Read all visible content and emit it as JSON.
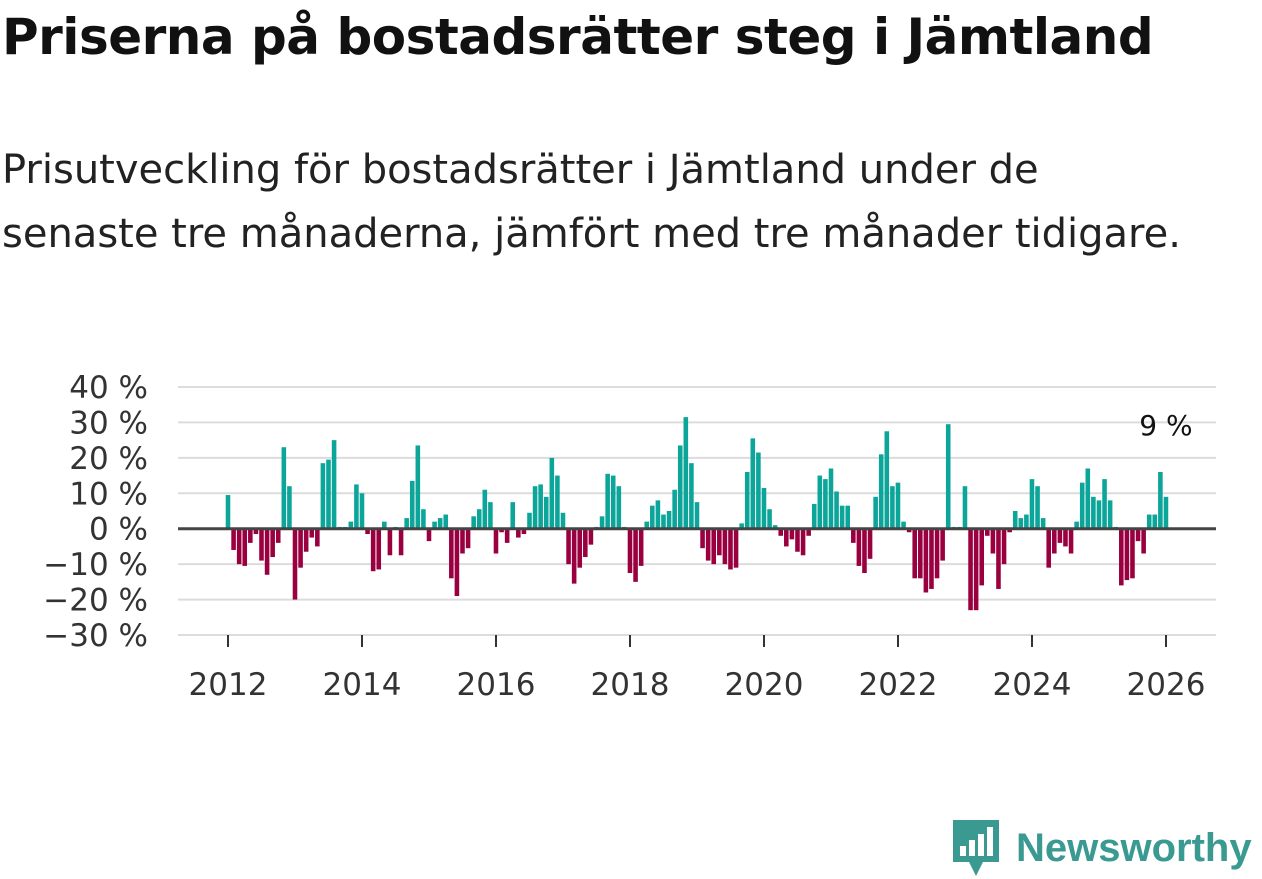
{
  "title": "Priserna på bostadsrätter steg i Jämtland",
  "subtitle": "Prisutveckling för bostadsrätter i Jämtland under de senaste tre månaderna, jämfört med tre månader tidigare.",
  "brand": {
    "name": "Newsworthy",
    "color": "#3a9a92",
    "icon": "newsworthy-logo-icon"
  },
  "colors": {
    "positive": "#0ca59a",
    "negative": "#9a0040",
    "zero_line": "#444444",
    "grid": "#dcdcdc"
  },
  "chart_data": {
    "type": "bar",
    "title": "",
    "xlabel": "",
    "ylabel": "",
    "ylim": [
      -30,
      40
    ],
    "yticks": [
      -30,
      -20,
      -10,
      0,
      10,
      20,
      30,
      40
    ],
    "ytick_labels": [
      "−30 %",
      "−20 %",
      "−10 %",
      "0 %",
      "10 %",
      "20 %",
      "30 %",
      "40 %"
    ],
    "xticks": [
      2012,
      2014,
      2016,
      2018,
      2020,
      2022,
      2024,
      2026
    ],
    "xtick_labels": [
      "2012",
      "2014",
      "2016",
      "2018",
      "2020",
      "2022",
      "2024",
      "2026"
    ],
    "x_start": 2012.0,
    "x_step": 0.08333,
    "annotation": {
      "label": "9 %",
      "value": 9
    },
    "values": [
      9.5,
      -6,
      -10,
      -10.5,
      -4,
      -1.5,
      -9,
      -13,
      -8,
      -4,
      23,
      12,
      -20,
      -11,
      -6.5,
      -2.5,
      -5,
      18.5,
      19.5,
      25,
      0.5,
      0.5,
      2,
      12.5,
      10,
      -1.5,
      -12,
      -11.5,
      2,
      -7.5,
      0.5,
      -7.5,
      3,
      13.5,
      23.5,
      5.5,
      -3.5,
      2,
      3,
      4,
      -14,
      -19,
      -7,
      -5.5,
      3.5,
      5.5,
      11,
      7.5,
      -7,
      -1,
      -4,
      7.5,
      -2.5,
      -1.5,
      4.5,
      12,
      12.5,
      9,
      20,
      15,
      4.5,
      -10,
      -15.5,
      -11,
      -8,
      -4.5,
      0.5,
      3.5,
      15.5,
      15,
      12,
      0.5,
      -12.5,
      -15,
      -10.5,
      2,
      6.5,
      8,
      4,
      5,
      11,
      23.5,
      31.5,
      18.5,
      7.5,
      -5.5,
      -9,
      -10,
      -7.5,
      -10,
      -11.5,
      -11,
      1.5,
      16,
      25.5,
      21.5,
      11.5,
      5.5,
      1,
      -2,
      -5,
      -3,
      -6.5,
      -7.5,
      -2,
      7,
      15,
      14,
      17,
      10.5,
      6.5,
      6.5,
      -4,
      -10.5,
      -12.5,
      -8.5,
      9,
      21,
      27.5,
      12,
      13,
      2,
      -1,
      -14,
      -14,
      -18,
      -17,
      -14,
      -9,
      29.5,
      0.5,
      0.5,
      12,
      -23,
      -23,
      -16,
      -2,
      -7,
      -17,
      -10,
      -1,
      5,
      3,
      4,
      14,
      12,
      3,
      -11,
      -7,
      -4,
      -5,
      -7,
      2,
      13,
      17,
      9,
      8,
      14,
      8,
      0.5,
      -16,
      -14.5,
      -14,
      -3.5,
      -7,
      4,
      4,
      16,
      9
    ]
  }
}
